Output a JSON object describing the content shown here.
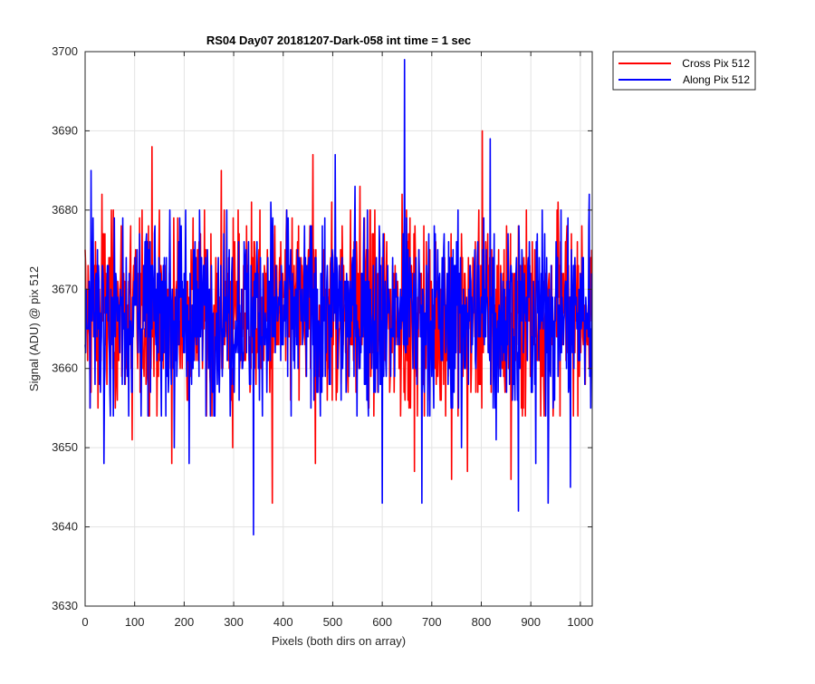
{
  "chart_data": {
    "type": "line",
    "title": "RS04 Day07 20181207-Dark-058 int time = 1 sec",
    "xlabel": "Pixels (both dirs on array)",
    "ylabel": "Signal (ADU) @ pix 512",
    "xlim": [
      0,
      1024
    ],
    "ylim": [
      3630,
      3700
    ],
    "xticks": [
      0,
      100,
      200,
      300,
      400,
      500,
      600,
      700,
      800,
      900,
      1000
    ],
    "yticks": [
      3630,
      3640,
      3650,
      3660,
      3670,
      3680,
      3690,
      3700
    ],
    "grid": true,
    "legend_position": "outside-top-right",
    "mean": 3667,
    "n_points": 1024,
    "series": [
      {
        "name": "Cross Pix 512",
        "color": "#ff0000",
        "peaks": [
          {
            "x": 12,
            "y": 3657
          },
          {
            "x": 34,
            "y": 3682
          },
          {
            "x": 92,
            "y": 3678
          },
          {
            "x": 95,
            "y": 3651
          },
          {
            "x": 135,
            "y": 3688
          },
          {
            "x": 175,
            "y": 3648
          },
          {
            "x": 275,
            "y": 3685
          },
          {
            "x": 298,
            "y": 3650
          },
          {
            "x": 336,
            "y": 3681
          },
          {
            "x": 378,
            "y": 3643
          },
          {
            "x": 460,
            "y": 3687
          },
          {
            "x": 465,
            "y": 3648
          },
          {
            "x": 498,
            "y": 3681
          },
          {
            "x": 555,
            "y": 3683
          },
          {
            "x": 640,
            "y": 3682
          },
          {
            "x": 665,
            "y": 3647
          },
          {
            "x": 740,
            "y": 3646
          },
          {
            "x": 772,
            "y": 3647
          },
          {
            "x": 802,
            "y": 3690
          },
          {
            "x": 860,
            "y": 3646
          },
          {
            "x": 955,
            "y": 3681
          },
          {
            "x": 980,
            "y": 3651
          }
        ]
      },
      {
        "name": "Along Pix 512",
        "color": "#0000ff",
        "peaks": [
          {
            "x": 12,
            "y": 3685
          },
          {
            "x": 38,
            "y": 3648
          },
          {
            "x": 180,
            "y": 3650
          },
          {
            "x": 210,
            "y": 3648
          },
          {
            "x": 340,
            "y": 3639
          },
          {
            "x": 375,
            "y": 3681
          },
          {
            "x": 505,
            "y": 3687
          },
          {
            "x": 545,
            "y": 3683
          },
          {
            "x": 600,
            "y": 3643
          },
          {
            "x": 645,
            "y": 3699
          },
          {
            "x": 680,
            "y": 3643
          },
          {
            "x": 760,
            "y": 3650
          },
          {
            "x": 818,
            "y": 3689
          },
          {
            "x": 830,
            "y": 3651
          },
          {
            "x": 875,
            "y": 3642
          },
          {
            "x": 910,
            "y": 3648
          },
          {
            "x": 935,
            "y": 3643
          },
          {
            "x": 980,
            "y": 3645
          },
          {
            "x": 1018,
            "y": 3682
          }
        ]
      }
    ]
  }
}
